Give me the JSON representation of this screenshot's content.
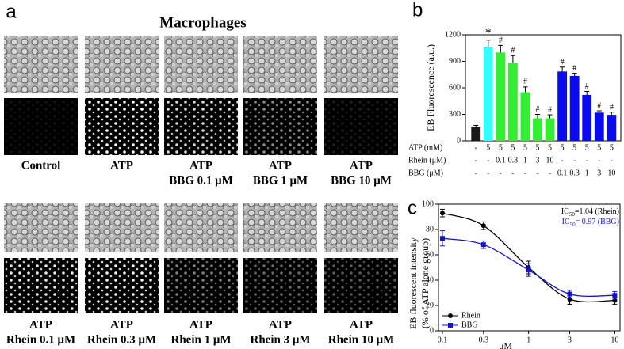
{
  "panel_a": {
    "label": "a",
    "title": "Macrophages",
    "groups": [
      {
        "captions": [
          [
            "Control"
          ],
          [
            "ATP"
          ],
          [
            "ATP",
            "BBG 0.1 μM"
          ],
          [
            "ATP",
            "BBG 1 μM"
          ],
          [
            "ATP",
            "BBG 10 μM"
          ]
        ]
      },
      {
        "captions": [
          [
            "ATP",
            "Rhein 0.1 μM"
          ],
          [
            "ATP",
            "Rhein 0.3 μM"
          ],
          [
            "ATP",
            "Rhein 1 μM"
          ],
          [
            "ATP",
            "Rhein 3 μM"
          ],
          [
            "ATP",
            "Rhein 10 μM"
          ]
        ]
      }
    ]
  },
  "chart_data": [
    {
      "type": "bar",
      "label": "b",
      "ylabel": "EB Fluorescence (a.u.)",
      "ylim": [
        0,
        1200
      ],
      "yticks": [
        0,
        300,
        600,
        900,
        1200
      ],
      "values": [
        155,
        1065,
        1000,
        885,
        550,
        255,
        255,
        785,
        735,
        520,
        320,
        295
      ],
      "errors": [
        20,
        75,
        80,
        80,
        60,
        45,
        40,
        50,
        30,
        40,
        20,
        30
      ],
      "colors": [
        "#1a1a1a",
        "#33ffff",
        "#33ee33",
        "#33ee33",
        "#33ee33",
        "#33ee33",
        "#33ee33",
        "#0a0aee",
        "#0a0aee",
        "#0a0aee",
        "#0a0aee",
        "#0a0aee"
      ],
      "marks": [
        null,
        "*",
        "#",
        "#",
        "#",
        "#",
        "#",
        "#",
        "#",
        "#",
        "#",
        "#"
      ],
      "table": [
        {
          "name": "ATP (mM)",
          "cells": [
            "-",
            "5",
            "5",
            "5",
            "5",
            "5",
            "5",
            "5",
            "5",
            "5",
            "5",
            "5"
          ]
        },
        {
          "name": "Rhein (μM)",
          "cells": [
            "-",
            "-",
            "0.1",
            "0.3",
            "1",
            "3",
            "10",
            "-",
            "-",
            "-",
            "-",
            "-"
          ]
        },
        {
          "name": "BBG (μM)",
          "cells": [
            "-",
            "-",
            "-",
            "-",
            "-",
            "-",
            "-",
            "0.1",
            "0.3",
            "1",
            "3",
            "10"
          ]
        }
      ]
    },
    {
      "type": "line",
      "label": "c",
      "xscale": "log",
      "xlabel": "μM",
      "ylabel": [
        "EB fluorescent intensity",
        "(% of ATP alone group)"
      ],
      "x": [
        0.1,
        0.3,
        1,
        3,
        10
      ],
      "xlim": [
        0.09,
        11.5
      ],
      "xticks": [
        0.1,
        0.3,
        1,
        3,
        10
      ],
      "ylim": [
        0,
        100
      ],
      "yticks": [
        0,
        20,
        40,
        60,
        80,
        100
      ],
      "series": [
        {
          "name": "Rhein",
          "color": "#000000",
          "values": [
            93,
            83,
            50,
            25,
            24
          ],
          "errors": [
            3,
            3,
            5,
            4,
            3
          ]
        },
        {
          "name": "BBG",
          "color": "#1515c8",
          "values": [
            73,
            68,
            48,
            29,
            28
          ],
          "errors": [
            6,
            3,
            5,
            3,
            3
          ]
        }
      ],
      "annotations": [
        {
          "text": "IC",
          "sub": "50",
          "rest": "=1.04 (Rhein)",
          "color": "#000000"
        },
        {
          "text": "IC",
          "sub": "50",
          "rest": "= 0.97 (BBG)",
          "color": "#1515c8"
        }
      ]
    }
  ]
}
